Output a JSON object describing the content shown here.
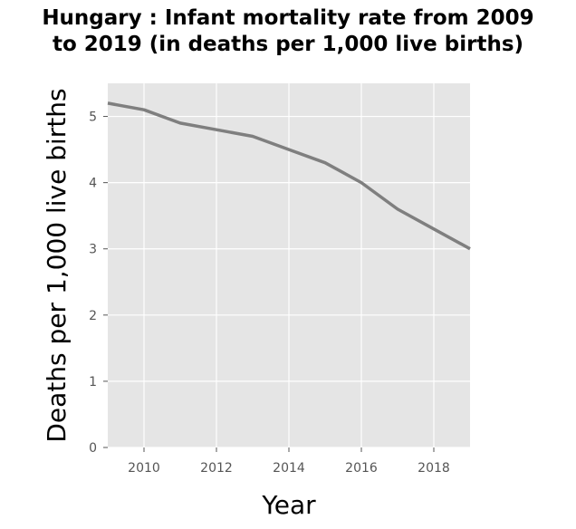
{
  "chart_data": {
    "type": "line",
    "title_line1": "Hungary : Infant mortality rate from 2009",
    "title_line2": "to 2019 (in deaths per 1,000 live births)",
    "xlabel": "Year",
    "ylabel": "Deaths per 1,000 live births",
    "xlim": [
      2009,
      2019
    ],
    "ylim": [
      0,
      5.5
    ],
    "x_ticks": [
      2010,
      2012,
      2014,
      2016,
      2018
    ],
    "y_ticks": [
      0,
      1,
      2,
      3,
      4,
      5
    ],
    "grid": true,
    "background": "#e5e5e5",
    "line_color": "#7f7f7f",
    "series": [
      {
        "x": [
          2009,
          2010,
          2011,
          2012,
          2013,
          2014,
          2015,
          2016,
          2017,
          2018,
          2019
        ],
        "values": [
          5.2,
          5.1,
          4.9,
          4.8,
          4.7,
          4.5,
          4.3,
          4.0,
          3.6,
          3.3,
          3.0
        ]
      }
    ]
  }
}
